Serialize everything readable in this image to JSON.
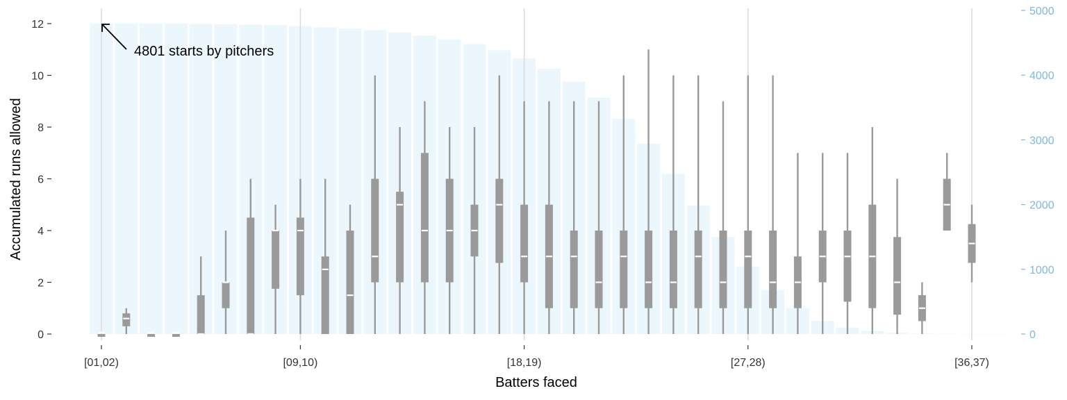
{
  "chart_data": {
    "type": "boxplot-with-bars",
    "xlabel": "Batters faced",
    "ylabel": "Accumulated runs allowed",
    "x_tick_labels": [
      "[01,02)",
      "[09,10)",
      "[18,19)",
      "[27,28)",
      "[36,37)"
    ],
    "x_tick_positions": [
      1,
      9,
      18,
      27,
      36
    ],
    "y_left_range": [
      0,
      12.5
    ],
    "y_left_ticks": [
      0,
      2,
      4,
      6,
      8,
      10,
      12
    ],
    "y_right_range": [
      0,
      5200
    ],
    "y_right_ticks": [
      0,
      1000,
      2000,
      3000,
      4000,
      5000
    ],
    "grid": "vertical-major",
    "annotation": {
      "text": "4801 starts by pitchers",
      "x": 1,
      "y": 12
    },
    "colors": {
      "bars": "#ebf7fd",
      "box": "#9a9a9a",
      "median": "#ffffff",
      "right_axis": "#7fb8d9"
    },
    "bar_counts": [
      4801,
      4800,
      4798,
      4795,
      4792,
      4787,
      4780,
      4772,
      4758,
      4740,
      4720,
      4695,
      4660,
      4610,
      4555,
      4480,
      4385,
      4260,
      4100,
      3900,
      3650,
      3325,
      2940,
      2475,
      1985,
      1500,
      1045,
      680,
      400,
      205,
      100,
      45,
      20,
      8,
      3,
      2,
      1
    ],
    "boxes": [
      {
        "x": 1,
        "min": 0,
        "q1": 0,
        "median": 0,
        "q3": 0,
        "max": 0
      },
      {
        "x": 2,
        "min": 0,
        "q1": 0.3,
        "median": 0.6,
        "q3": 0.8,
        "max": 1
      },
      {
        "x": 3,
        "min": 0,
        "q1": 0,
        "median": 0,
        "q3": 0,
        "max": 0
      },
      {
        "x": 4,
        "min": 0,
        "q1": 0,
        "median": 0,
        "q3": 0,
        "max": 0
      },
      {
        "x": 5,
        "min": 0,
        "q1": 0,
        "median": 0,
        "q3": 1.5,
        "max": 3
      },
      {
        "x": 6,
        "min": 0,
        "q1": 1,
        "median": 2,
        "q3": 2,
        "max": 4
      },
      {
        "x": 7,
        "min": 0,
        "q1": 0,
        "median": 0,
        "q3": 4.5,
        "max": 6
      },
      {
        "x": 8,
        "min": 0,
        "q1": 1.75,
        "median": 4,
        "q3": 4,
        "max": 5
      },
      {
        "x": 9,
        "min": 0,
        "q1": 1.5,
        "median": 4,
        "q3": 4.5,
        "max": 6
      },
      {
        "x": 10,
        "min": 0,
        "q1": 0,
        "median": 2.5,
        "q3": 3,
        "max": 6
      },
      {
        "x": 11,
        "min": 0,
        "q1": 0,
        "median": 1.5,
        "q3": 4,
        "max": 5
      },
      {
        "x": 12,
        "min": 0,
        "q1": 2,
        "median": 3,
        "q3": 6,
        "max": 10
      },
      {
        "x": 13,
        "min": 0,
        "q1": 2,
        "median": 5,
        "q3": 5.5,
        "max": 8
      },
      {
        "x": 14,
        "min": 0,
        "q1": 2,
        "median": 4,
        "q3": 7,
        "max": 9
      },
      {
        "x": 15,
        "min": 0,
        "q1": 2,
        "median": 4,
        "q3": 6,
        "max": 8
      },
      {
        "x": 16,
        "min": 0,
        "q1": 3,
        "median": 4,
        "q3": 5,
        "max": 8
      },
      {
        "x": 17,
        "min": 0,
        "q1": 2.75,
        "median": 5,
        "q3": 6,
        "max": 10
      },
      {
        "x": 18,
        "min": 0,
        "q1": 2,
        "median": 3,
        "q3": 5,
        "max": 9
      },
      {
        "x": 19,
        "min": 0,
        "q1": 1,
        "median": 3,
        "q3": 5,
        "max": 9
      },
      {
        "x": 20,
        "min": 0,
        "q1": 1,
        "median": 3,
        "q3": 4,
        "max": 9
      },
      {
        "x": 21,
        "min": 0,
        "q1": 1,
        "median": 2,
        "q3": 4,
        "max": 9
      },
      {
        "x": 22,
        "min": 0,
        "q1": 1,
        "median": 3,
        "q3": 4,
        "max": 10
      },
      {
        "x": 23,
        "min": 0,
        "q1": 1,
        "median": 2,
        "q3": 4,
        "max": 11
      },
      {
        "x": 24,
        "min": 0,
        "q1": 1,
        "median": 2,
        "q3": 4,
        "max": 10
      },
      {
        "x": 25,
        "min": 0,
        "q1": 1,
        "median": 3,
        "q3": 4,
        "max": 10
      },
      {
        "x": 26,
        "min": 0,
        "q1": 1,
        "median": 2,
        "q3": 4,
        "max": 9
      },
      {
        "x": 27,
        "min": 0,
        "q1": 1,
        "median": 3,
        "q3": 4,
        "max": 10
      },
      {
        "x": 28,
        "min": 0,
        "q1": 1,
        "median": 2,
        "q3": 4,
        "max": 10
      },
      {
        "x": 29,
        "min": 0,
        "q1": 1,
        "median": 2,
        "q3": 3,
        "max": 7
      },
      {
        "x": 30,
        "min": 0,
        "q1": 2,
        "median": 3,
        "q3": 4,
        "max": 7
      },
      {
        "x": 31,
        "min": 0,
        "q1": 1.25,
        "median": 3,
        "q3": 4,
        "max": 7
      },
      {
        "x": 32,
        "min": 0,
        "q1": 1,
        "median": 3,
        "q3": 5,
        "max": 8
      },
      {
        "x": 33,
        "min": 0,
        "q1": 0.75,
        "median": 2,
        "q3": 3.75,
        "max": 6
      },
      {
        "x": 34,
        "min": 0,
        "q1": 0.5,
        "median": 1,
        "q3": 1.5,
        "max": 2
      },
      {
        "x": 35,
        "min": 4,
        "q1": 4,
        "median": 5,
        "q3": 6,
        "max": 7
      },
      {
        "x": 36,
        "min": 2,
        "q1": 2.75,
        "median": 3.5,
        "q3": 4.25,
        "max": 5
      }
    ]
  }
}
